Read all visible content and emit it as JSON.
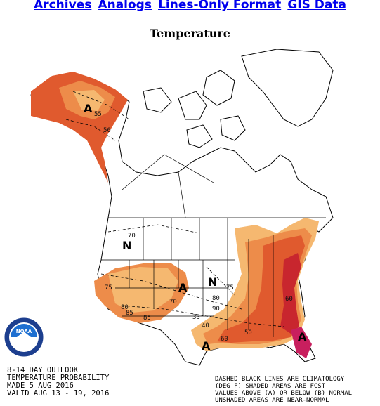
{
  "nav": {
    "links": [
      "Archives",
      "Analogs",
      "Lines-Only Format",
      "GIS Data"
    ]
  },
  "page": {
    "heading": "Temperature"
  },
  "map": {
    "logo_text": "NOAA",
    "caption_left": [
      "8-14 DAY OUTLOOK",
      "TEMPERATURE PROBABILITY",
      "MADE  5 AUG 2016",
      "VALID  AUG 13 - 19, 2016"
    ],
    "caption_right": [
      "DASHED BLACK LINES ARE CLIMATOLOGY",
      "(DEG F) SHADED AREAS ARE FCST",
      "VALUES ABOVE (A) OR BELOW (B) NORMAL",
      "UNSHADED AREAS ARE NEAR-NORMAL"
    ],
    "category_labels": {
      "alaska_a": "A",
      "west_a": "A",
      "gulf_a1": "A",
      "gulf_a2": "A",
      "north_n1": "N",
      "north_n2": "N"
    },
    "contour_labels": {
      "ak55": "55",
      "ak50": "50",
      "w70": "70",
      "w75": "75",
      "w80": "80",
      "w85": "85",
      "w85b": "85",
      "w70b": "70",
      "c75": "75",
      "c80": "80",
      "c33": "33",
      "c40": "40",
      "c50": "50",
      "c60": "60",
      "e60": "60",
      "c90": "90"
    },
    "colors": {
      "light_orange": "#f5b870",
      "orange": "#ed8c4a",
      "dark_orange": "#e05a2e",
      "red": "#c8262e",
      "magenta": "#c81f5e"
    }
  }
}
